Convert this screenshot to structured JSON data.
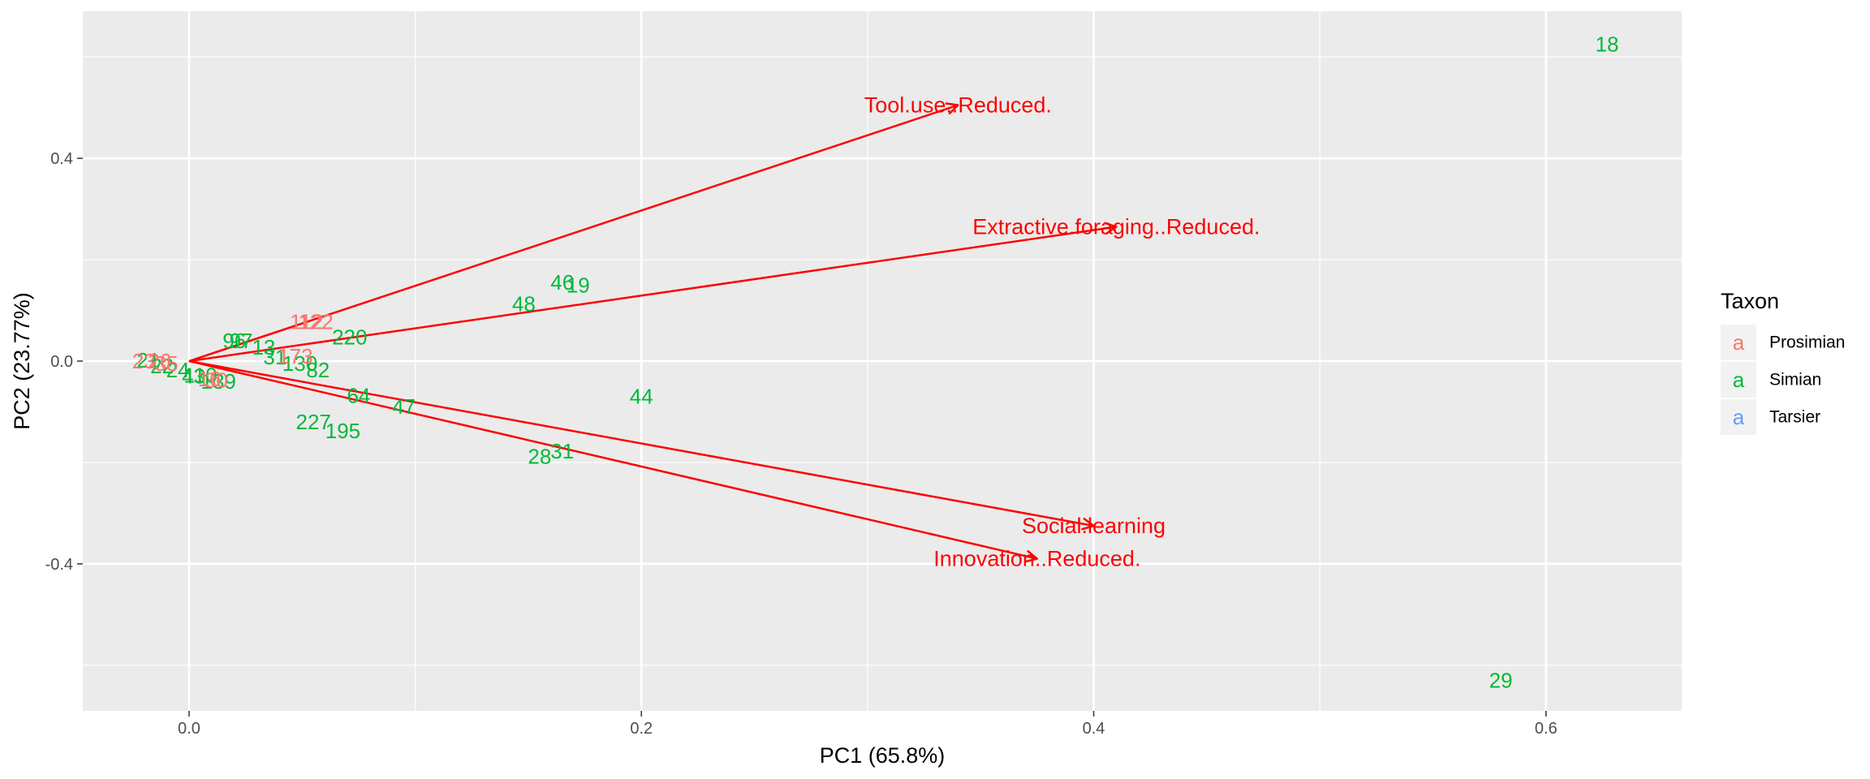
{
  "chart_data": {
    "type": "scatter",
    "xlabel": "PC1 (65.8%)",
    "ylabel": "PC2 (23.77%)",
    "xlim": [
      -0.047,
      0.66
    ],
    "ylim": [
      -0.69,
      0.69
    ],
    "x_ticks": [
      0.0,
      0.2,
      0.4,
      0.6
    ],
    "x_tick_labels": [
      "0.0",
      "0.2",
      "0.4",
      "0.6"
    ],
    "y_ticks": [
      -0.4,
      0.0,
      0.4
    ],
    "y_tick_labels": [
      "-0.4",
      "0.0",
      "0.4"
    ],
    "grid": true,
    "legend": {
      "title": "Taxon",
      "placement": "right",
      "glyph": "a",
      "entries": [
        {
          "label": "Prosimian",
          "color": "#F8766D"
        },
        {
          "label": "Simian",
          "color": "#00BA38"
        },
        {
          "label": "Tarsier",
          "color": "#619CFF"
        }
      ]
    },
    "arrows": {
      "color": "#FF0000",
      "origin": [
        0,
        0
      ],
      "items": [
        {
          "label": "Tool.use..Reduced.",
          "x": 0.34,
          "y": 0.505
        },
        {
          "label": "Extractive.foraging..Reduced.",
          "x": 0.41,
          "y": 0.265
        },
        {
          "label": "Social.learning",
          "x": 0.4,
          "y": -0.325
        },
        {
          "label": "Innovation..Reduced.",
          "x": 0.375,
          "y": -0.39
        }
      ]
    },
    "points": [
      {
        "label": "18",
        "x": 0.627,
        "y": 0.625,
        "taxon": "Simian"
      },
      {
        "label": "29",
        "x": 0.58,
        "y": -0.63,
        "taxon": "Simian"
      },
      {
        "label": "44",
        "x": 0.2,
        "y": -0.07,
        "taxon": "Simian"
      },
      {
        "label": "48",
        "x": 0.148,
        "y": 0.113,
        "taxon": "Simian"
      },
      {
        "label": "46",
        "x": 0.165,
        "y": 0.155,
        "taxon": "Simian"
      },
      {
        "label": "19",
        "x": 0.172,
        "y": 0.15,
        "taxon": "Simian"
      },
      {
        "label": "220",
        "x": 0.071,
        "y": 0.047,
        "taxon": "Simian"
      },
      {
        "label": "96",
        "x": 0.02,
        "y": 0.04,
        "taxon": "Simian"
      },
      {
        "label": "97",
        "x": 0.023,
        "y": 0.04,
        "taxon": "Simian"
      },
      {
        "label": "13",
        "x": 0.033,
        "y": 0.027,
        "taxon": "Simian"
      },
      {
        "label": "31",
        "x": 0.038,
        "y": 0.008,
        "taxon": "Simian"
      },
      {
        "label": "130",
        "x": 0.049,
        "y": -0.005,
        "taxon": "Simian"
      },
      {
        "label": "82",
        "x": 0.057,
        "y": -0.018,
        "taxon": "Simian"
      },
      {
        "label": "64",
        "x": 0.075,
        "y": -0.068,
        "taxon": "Simian"
      },
      {
        "label": "47",
        "x": 0.095,
        "y": -0.09,
        "taxon": "Simian"
      },
      {
        "label": "227",
        "x": 0.055,
        "y": -0.12,
        "taxon": "Simian"
      },
      {
        "label": "195",
        "x": 0.068,
        "y": -0.138,
        "taxon": "Simian"
      },
      {
        "label": "28",
        "x": 0.155,
        "y": -0.188,
        "taxon": "Simian"
      },
      {
        "label": "31",
        "x": 0.165,
        "y": -0.178,
        "taxon": "Simian"
      },
      {
        "label": "139",
        "x": 0.013,
        "y": -0.04,
        "taxon": "Simian"
      },
      {
        "label": "22",
        "x": -0.012,
        "y": -0.01,
        "taxon": "Simian"
      },
      {
        "label": "24",
        "x": -0.005,
        "y": -0.018,
        "taxon": "Simian"
      },
      {
        "label": "110",
        "x": 0.005,
        "y": -0.028,
        "taxon": "Simian"
      },
      {
        "label": "21",
        "x": -0.018,
        "y": 0.002,
        "taxon": "Simian"
      },
      {
        "label": "43",
        "x": 0.002,
        "y": -0.03,
        "taxon": "Simian"
      },
      {
        "label": "112",
        "x": 0.052,
        "y": 0.078,
        "taxon": "Prosimian"
      },
      {
        "label": "122",
        "x": 0.056,
        "y": 0.078,
        "taxon": "Prosimian"
      },
      {
        "label": "173",
        "x": 0.047,
        "y": 0.01,
        "taxon": "Prosimian"
      },
      {
        "label": "23",
        "x": -0.02,
        "y": 0.0,
        "taxon": "Prosimian"
      },
      {
        "label": "26",
        "x": -0.013,
        "y": 0.0,
        "taxon": "Prosimian"
      },
      {
        "label": "35",
        "x": -0.01,
        "y": -0.005,
        "taxon": "Prosimian"
      },
      {
        "label": "16",
        "x": 0.009,
        "y": -0.035,
        "taxon": "Prosimian"
      },
      {
        "label": "30",
        "x": 0.012,
        "y": -0.038,
        "taxon": "Prosimian"
      }
    ]
  }
}
